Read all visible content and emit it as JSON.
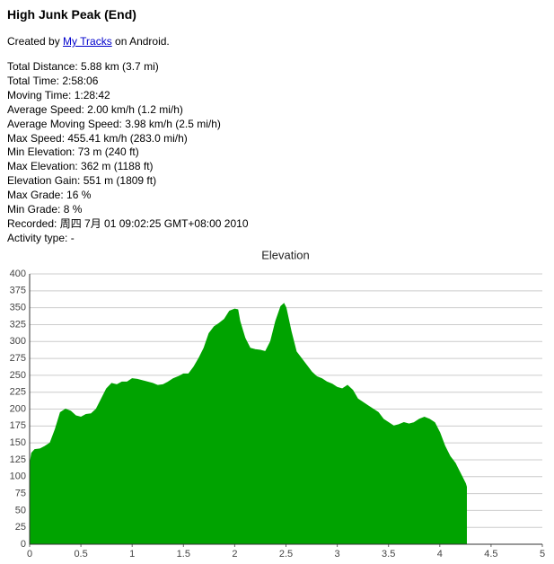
{
  "header": {
    "title": "High Junk Peak (End)",
    "created": [
      "Created by ",
      "My Tracks",
      " on Android."
    ]
  },
  "stats": [
    "Total Distance: 5.88 km (3.7 mi)",
    "Total Time: 2:58:06",
    "Moving Time: 1:28:42",
    "Average Speed: 2.00 km/h (1.2 mi/h)",
    "Average Moving Speed: 3.98 km/h (2.5 mi/h)",
    "Max Speed: 455.41 km/h (283.0 mi/h)",
    "Min Elevation: 73 m (240 ft)",
    "Max Elevation: 362 m (1188 ft)",
    "Elevation Gain: 551 m (1809 ft)",
    "Max Grade: 16 %",
    "Min Grade: 8 %",
    "Recorded: 周四 7月 01 09:02:25 GMT+08:00 2010",
    "Activity type: -"
  ],
  "chart_data": {
    "type": "area",
    "title": "Elevation",
    "color": "#00a300",
    "grid": true,
    "x": [
      0,
      0.02,
      0.05,
      0.1,
      0.15,
      0.2,
      0.25,
      0.3,
      0.35,
      0.4,
      0.45,
      0.5,
      0.55,
      0.6,
      0.65,
      0.7,
      0.75,
      0.8,
      0.85,
      0.9,
      0.95,
      1.0,
      1.05,
      1.1,
      1.15,
      1.2,
      1.25,
      1.3,
      1.35,
      1.4,
      1.45,
      1.5,
      1.55,
      1.6,
      1.65,
      1.7,
      1.75,
      1.8,
      1.85,
      1.9,
      1.95,
      2.0,
      2.03,
      2.05,
      2.1,
      2.15,
      2.2,
      2.25,
      2.3,
      2.35,
      2.4,
      2.45,
      2.48,
      2.5,
      2.55,
      2.6,
      2.65,
      2.7,
      2.75,
      2.8,
      2.85,
      2.9,
      2.95,
      3.0,
      3.05,
      3.1,
      3.15,
      3.2,
      3.3,
      3.4,
      3.45,
      3.5,
      3.55,
      3.6,
      3.65,
      3.7,
      3.75,
      3.8,
      3.85,
      3.9,
      3.95,
      4.0,
      4.05,
      4.1,
      4.15,
      4.2,
      4.25,
      4.26
    ],
    "values": [
      115,
      135,
      140,
      141,
      145,
      150,
      170,
      195,
      200,
      197,
      190,
      188,
      192,
      193,
      200,
      215,
      230,
      238,
      236,
      240,
      240,
      245,
      244,
      242,
      240,
      238,
      235,
      236,
      240,
      245,
      248,
      252,
      252,
      262,
      275,
      290,
      312,
      322,
      327,
      333,
      345,
      348,
      347,
      330,
      305,
      290,
      288,
      287,
      285,
      300,
      330,
      352,
      356,
      350,
      315,
      285,
      275,
      265,
      255,
      248,
      245,
      240,
      237,
      232,
      230,
      235,
      228,
      215,
      205,
      195,
      185,
      180,
      175,
      177,
      180,
      178,
      180,
      185,
      188,
      185,
      180,
      165,
      145,
      130,
      120,
      105,
      90,
      85
    ],
    "xlim": [
      0,
      5
    ],
    "xticks": [
      0,
      0.5,
      1,
      1.5,
      2,
      2.5,
      3,
      3.5,
      4,
      4.5,
      5
    ],
    "ylim": [
      0,
      400
    ],
    "yticks": [
      0,
      25,
      50,
      75,
      100,
      125,
      150,
      175,
      200,
      225,
      250,
      275,
      300,
      325,
      350,
      375,
      400
    ]
  }
}
